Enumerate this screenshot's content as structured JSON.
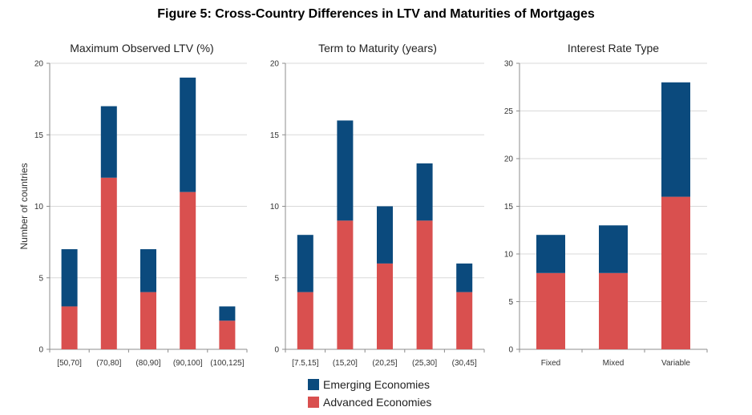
{
  "title": "Figure 5: Cross-Country Differences in LTV and Maturities of Mortgages",
  "colors": {
    "emerging": "#0b4a7d",
    "advanced": "#d9504f",
    "grid": "#d9d9d9",
    "axis": "#8c8c8c"
  },
  "legend": [
    "Emerging Economies",
    "Advanced Economies"
  ],
  "chart_data": [
    {
      "type": "bar",
      "stacked": true,
      "title": "Maximum Observed LTV (%)",
      "ylabel": "Number of countries",
      "categories": [
        "[50,70]",
        "(70,80]",
        "(80,90]",
        "(90,100]",
        "(100,125]"
      ],
      "ylim": [
        0,
        20
      ],
      "yticks": [
        0,
        5,
        10,
        15,
        20
      ],
      "series": [
        {
          "name": "Advanced Economies",
          "values": [
            3,
            12,
            4,
            11,
            2
          ]
        },
        {
          "name": "Emerging Economies",
          "values": [
            4,
            5,
            3,
            8,
            1
          ]
        }
      ],
      "grid": true
    },
    {
      "type": "bar",
      "stacked": true,
      "title": "Term to Maturity (years)",
      "categories": [
        "[7.5,15]",
        "(15,20]",
        "(20,25]",
        "(25,30]",
        "(30,45]"
      ],
      "ylim": [
        0,
        20
      ],
      "yticks": [
        0,
        5,
        10,
        15,
        20
      ],
      "series": [
        {
          "name": "Advanced Economies",
          "values": [
            4,
            9,
            6,
            9,
            4
          ]
        },
        {
          "name": "Emerging Economies",
          "values": [
            4,
            7,
            4,
            4,
            2
          ]
        }
      ],
      "grid": true
    },
    {
      "type": "bar",
      "stacked": true,
      "title": "Interest Rate Type",
      "categories": [
        "Fixed",
        "Mixed",
        "Variable"
      ],
      "ylim": [
        0,
        30
      ],
      "yticks": [
        0,
        5,
        10,
        15,
        20,
        25,
        30
      ],
      "series": [
        {
          "name": "Advanced Economies",
          "values": [
            8,
            8,
            16
          ]
        },
        {
          "name": "Emerging Economies",
          "values": [
            4,
            5,
            12
          ]
        }
      ],
      "grid": true
    }
  ]
}
